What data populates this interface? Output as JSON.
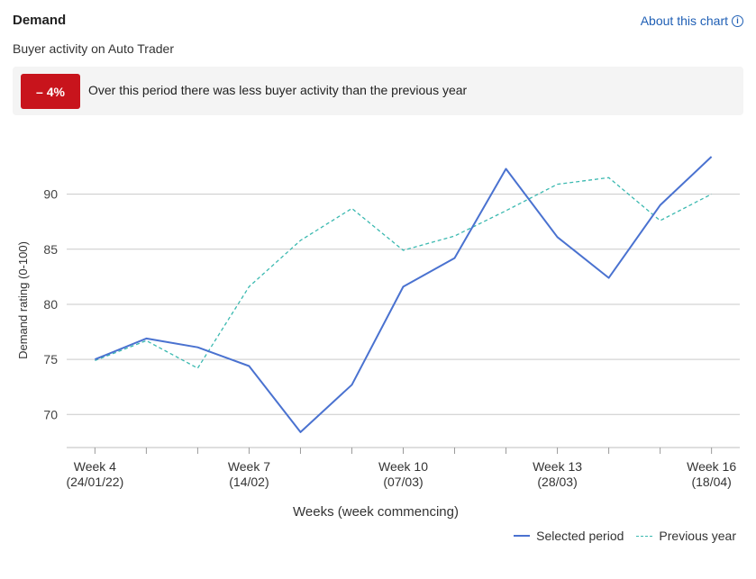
{
  "header": {
    "title": "Demand",
    "subtitle": "Buyer activity on Auto Trader",
    "about_link": "About this chart",
    "info_glyph": "i"
  },
  "banner": {
    "badge": "– 4%",
    "text": "Over this period there was less buyer activity than the previous year",
    "badge_color": "#c8141c"
  },
  "chart_data": {
    "type": "line",
    "title": "",
    "xlabel": "Weeks (week commencing)",
    "ylabel": "Demand rating (0-100)",
    "ylim": [
      67,
      97
    ],
    "yticks": [
      70,
      75,
      80,
      85,
      90
    ],
    "x": [
      4,
      5,
      6,
      7,
      8,
      9,
      10,
      11,
      12,
      13,
      14,
      15,
      16
    ],
    "xlim": [
      3.45,
      16.55
    ],
    "xtick_labels": [
      {
        "x": 4,
        "line1": "Week 4",
        "line2": "(24/01/22)"
      },
      {
        "x": 7,
        "line1": "Week 7",
        "line2": "(14/02)"
      },
      {
        "x": 10,
        "line1": "Week 10",
        "line2": "(07/03)"
      },
      {
        "x": 13,
        "line1": "Week 13",
        "line2": "(28/03)"
      },
      {
        "x": 16,
        "line1": "Week 16",
        "line2": "(18/04)"
      }
    ],
    "grid": "horizontal",
    "legend_position": "bottom-right",
    "series": [
      {
        "name": "Selected period",
        "style": "solid",
        "color": "#4a72d0",
        "values": [
          75.0,
          76.9,
          76.1,
          74.4,
          68.4,
          72.7,
          81.6,
          84.2,
          92.3,
          86.1,
          82.4,
          89.0,
          93.4
        ]
      },
      {
        "name": "Previous year",
        "style": "dashed",
        "color": "#3bb9b0",
        "values": [
          74.9,
          76.7,
          74.2,
          81.6,
          85.8,
          88.7,
          84.9,
          86.2,
          88.5,
          90.9,
          91.5,
          87.6,
          90.0
        ]
      }
    ]
  }
}
